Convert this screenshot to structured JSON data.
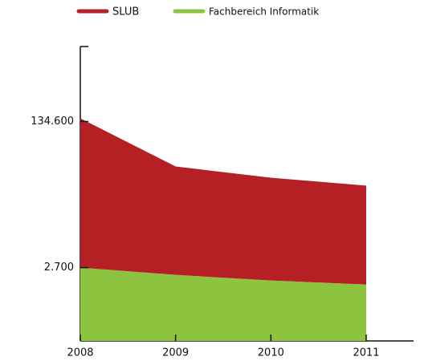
{
  "chart_data": {
    "type": "stacked_area",
    "categories": [
      "2008",
      "2009",
      "2010",
      "2011"
    ],
    "series": [
      {
        "name": "Fachbereich Informatik",
        "color": "#8cc43f",
        "values": [
          2700,
          2226,
          1915,
          1720
        ]
      },
      {
        "name": "SLUB",
        "color": "#b52025",
        "values": [
          143900,
          38200,
          28000,
          22500
        ]
      }
    ],
    "log_scale": true,
    "ylim": [
      380,
      1000000
    ],
    "yticks": [
      {
        "value": 2700,
        "label": "2.700"
      },
      {
        "value": 134600,
        "label": "134.600"
      }
    ],
    "legend": "top"
  }
}
